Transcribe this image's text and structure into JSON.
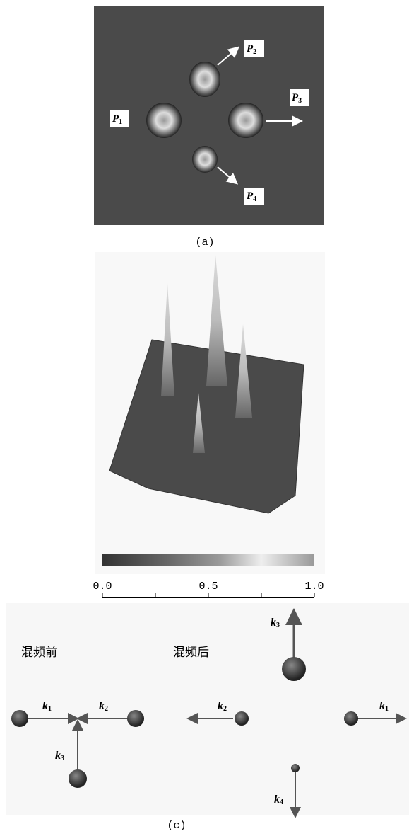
{
  "panel_a": {
    "labels": [
      {
        "main": "P",
        "sub": "1"
      },
      {
        "main": "P",
        "sub": "2"
      },
      {
        "main": "P",
        "sub": "3"
      },
      {
        "main": "P",
        "sub": "4"
      }
    ],
    "caption": "(a)"
  },
  "panel_b": {
    "colorbar_ticks": [
      "0.0",
      "0.5",
      "1.0"
    ]
  },
  "panel_c": {
    "before": "混频前",
    "after": "混频后",
    "labels": [
      {
        "main": "k",
        "sub": "1"
      },
      {
        "main": "k",
        "sub": "2"
      },
      {
        "main": "k",
        "sub": "3"
      },
      {
        "main": "k",
        "sub": "2"
      },
      {
        "main": "k",
        "sub": "1"
      },
      {
        "main": "k",
        "sub": "3"
      },
      {
        "main": "k",
        "sub": "4"
      }
    ],
    "caption": "(c)"
  }
}
